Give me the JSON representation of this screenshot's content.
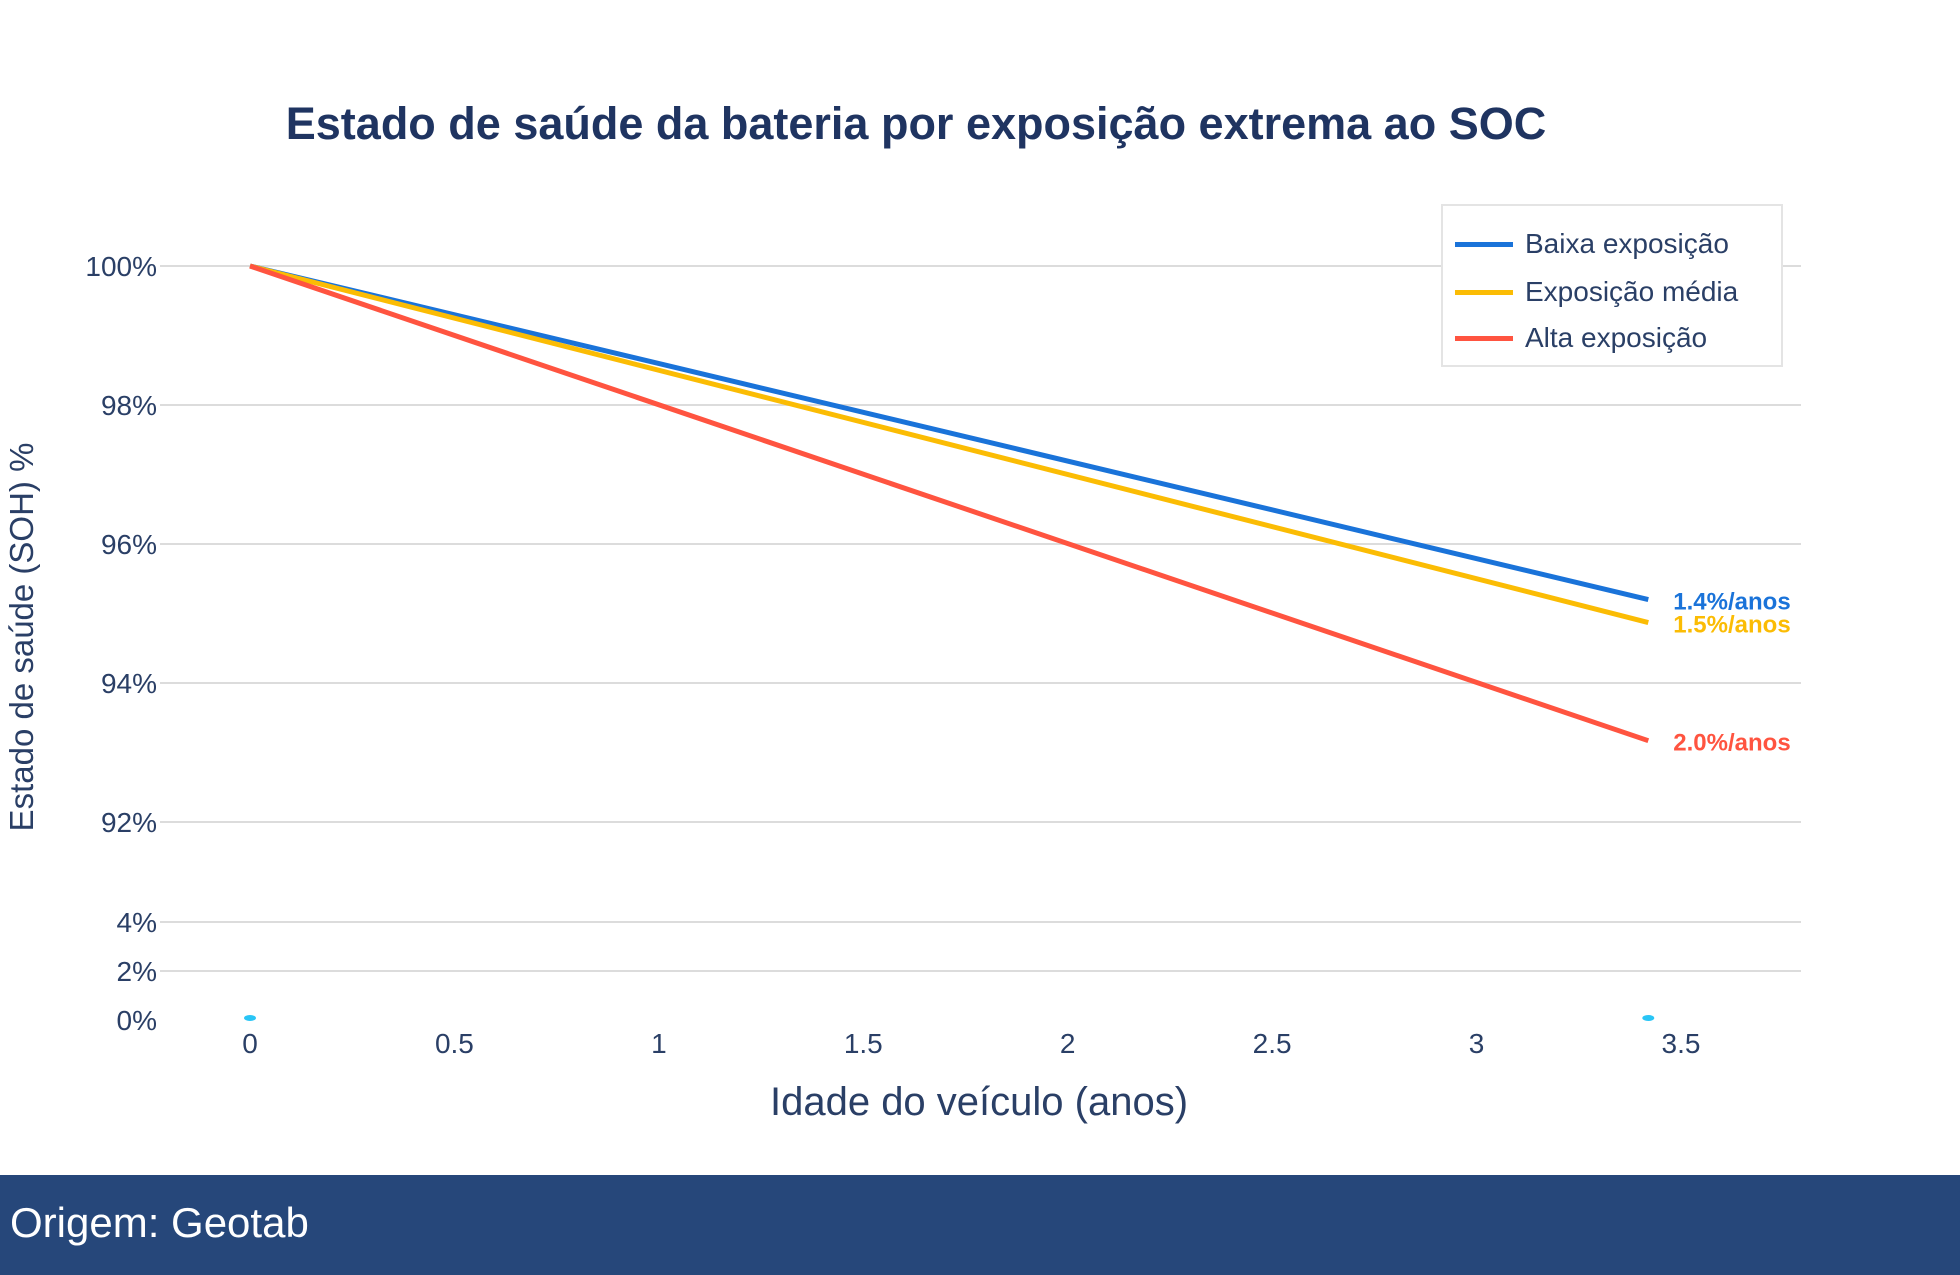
{
  "chart_data": {
    "type": "line",
    "title": "Estado de saúde da bateria por exposição extrema ao SOC",
    "xlabel": "Idade do veículo (anos)",
    "ylabel": "Estado de saúde (SOH) %",
    "xlim": [
      0,
      3.8
    ],
    "x_ticks": [
      0,
      0.5,
      1,
      1.5,
      2,
      2.5,
      3,
      3.5
    ],
    "x_tick_labels": [
      "0",
      "0.5",
      "1",
      "1.5",
      "2",
      "2.5",
      "3",
      "3.5"
    ],
    "y_axis_broken": true,
    "y_ticks": [
      0,
      2,
      4,
      92,
      94,
      96,
      98,
      100
    ],
    "y_tick_labels": [
      "0%",
      "2%",
      "4%",
      "92%",
      "94%",
      "96%",
      "98%",
      "100%"
    ],
    "grid": true,
    "legend_position": "top-right",
    "series": [
      {
        "name": "Baixa exposição",
        "color": "#1a73d9",
        "x": [
          0,
          3.42
        ],
        "y": [
          100,
          95.2
        ],
        "end_label": "1.4%/anos"
      },
      {
        "name": "Exposição média",
        "color": "#fbbc04",
        "x": [
          0,
          3.42
        ],
        "y": [
          100,
          94.87
        ],
        "end_label": "1.5%/anos"
      },
      {
        "name": "Alta exposição",
        "color": "#ff5440",
        "x": [
          0,
          3.42
        ],
        "y": [
          100,
          93.17
        ],
        "end_label": "2.0%/anos"
      }
    ],
    "markers": {
      "color": "#29c5f6",
      "x": [
        0,
        3.42
      ],
      "y": [
        0,
        0
      ]
    }
  },
  "footer": {
    "source": "Origem: Geotab"
  }
}
